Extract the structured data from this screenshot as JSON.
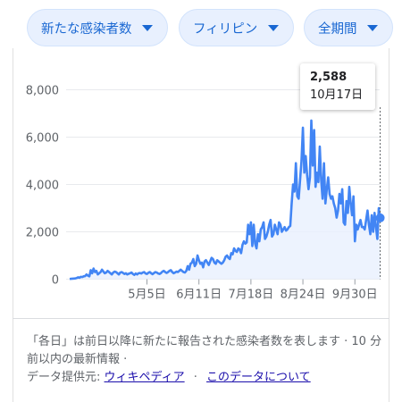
{
  "filters": {
    "metric": "新たな感染者数",
    "country": "フィリピン",
    "period": "全期間"
  },
  "tooltip": {
    "value": "2,588",
    "date": "10月17日"
  },
  "footnote": {
    "line": "「各日」は前日以降に新たに報告された感染者数を表します · 10 分前以内の最新情報 ·",
    "source_label": "データ提供元:",
    "source_link": "ウィキペディア",
    "about_link": "このデータについて"
  },
  "chart_data": {
    "type": "area",
    "y_ticks": [
      0,
      2000,
      4000,
      6000,
      8000
    ],
    "y_tick_labels": [
      "0",
      "2,000",
      "4,000",
      "6,000",
      "8,000"
    ],
    "ylim": [
      0,
      8800
    ],
    "x_tick_labels": [
      "5月5日",
      "6月11日",
      "7月18日",
      "8月24日",
      "9月30日"
    ],
    "x_tick_index": [
      55,
      92,
      129,
      166,
      203
    ],
    "x_range_index": [
      0,
      220
    ],
    "grid": true,
    "colors": {
      "line": "#4285f4",
      "fill": "#e8f0fe",
      "grid": "#e8eaed"
    },
    "values": [
      10,
      15,
      20,
      25,
      30,
      50,
      80,
      60,
      100,
      90,
      120,
      130,
      200,
      150,
      120,
      380,
      250,
      450,
      300,
      350,
      200,
      250,
      300,
      400,
      320,
      250,
      280,
      350,
      300,
      250,
      200,
      280,
      320,
      300,
      250,
      200,
      280,
      300,
      260,
      220,
      250,
      200,
      230,
      250,
      280,
      220,
      180,
      240,
      200,
      250,
      260,
      240,
      280,
      300,
      240,
      220,
      270,
      300,
      250,
      210,
      260,
      300,
      280,
      240,
      220,
      260,
      320,
      350,
      300,
      260,
      300,
      350,
      380,
      300,
      250,
      280,
      320,
      300,
      350,
      400,
      350,
      300,
      280,
      350,
      550,
      400,
      650,
      700,
      850,
      550,
      650,
      1000,
      800,
      650,
      700,
      500,
      750,
      800,
      700,
      600,
      750,
      900,
      850,
      700,
      650,
      800,
      750,
      700,
      650,
      700,
      800,
      950,
      1000,
      900,
      850,
      1100,
      1050,
      1300,
      1200,
      1150,
      1300,
      1250,
      1100,
      1450,
      1600,
      1500,
      1550,
      2300,
      1900,
      2400,
      1400,
      2300,
      1500,
      1300,
      1900,
      1600,
      2100,
      2200,
      2400,
      1700,
      1800,
      2000,
      2300,
      2500,
      1800,
      1900,
      2300,
      2100,
      1900,
      2400,
      2300,
      2000,
      2100,
      2200,
      2050,
      2100,
      2200,
      2250,
      3200,
      4000,
      3700,
      4900,
      3500,
      3400,
      4200,
      5000,
      6400,
      4500,
      5200,
      4400,
      3800,
      4300,
      6700,
      4800,
      6300,
      3900,
      4500,
      4100,
      5600,
      4200,
      3400,
      4900,
      3200,
      3800,
      4300,
      3600,
      3400,
      3500,
      3200,
      3000,
      2600,
      2900,
      3600,
      3200,
      3800,
      2400,
      2300,
      3300,
      2800,
      3900,
      3200,
      2700,
      3500,
      1600,
      2300,
      2100,
      2300,
      2500,
      2200,
      2200,
      2100,
      2500,
      2900,
      2300,
      1900,
      2700,
      2000,
      2800,
      2200,
      1700,
      3000,
      2588
    ]
  }
}
